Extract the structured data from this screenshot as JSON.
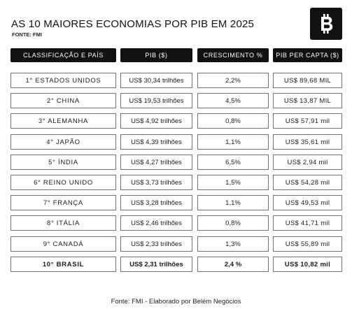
{
  "header": {
    "title": "AS 10 MAIORES ECONOMIAS POR PIB EM 2025",
    "source": "FONTE: FMI",
    "logo_icon": "bitcoin-icon"
  },
  "table": {
    "columns": [
      "CLASSIFICAÇÃO E PAÍS",
      "PIB ($)",
      "CRESCIMENTO %",
      "PIB PER CAPTA ($)"
    ],
    "rows": [
      {
        "rank": "1° ESTADOS UNIDOS",
        "gdp": "US$ 30,34 trilhões",
        "growth": "2,2%",
        "per_capita": "US$ 89,68 MIL"
      },
      {
        "rank": "2° CHINA",
        "gdp": "US$ 19,53 trilhões",
        "growth": "4,5%",
        "per_capita": "US$ 13,87 MIL"
      },
      {
        "rank": "3° ALEMANHA",
        "gdp": "US$ 4,92 trilhões",
        "growth": "0,8%",
        "per_capita": "US$ 57,91 mil"
      },
      {
        "rank": "4° JAPÃO",
        "gdp": "US$ 4,39 trilhões",
        "growth": "1,1%",
        "per_capita": "US$ 35,61 mil"
      },
      {
        "rank": "5° ÍNDIA",
        "gdp": "US$ 4,27 trilhões",
        "growth": "6,5%",
        "per_capita": "US$ 2,94 mil"
      },
      {
        "rank": "6° REINO UNIDO",
        "gdp": "US$ 3,73 trilhões",
        "growth": "1,5%",
        "per_capita": "US$ 54,28 mil"
      },
      {
        "rank": "7° FRANÇA",
        "gdp": "US$ 3,28 trilhões",
        "growth": "1,1%",
        "per_capita": "US$ 49,53 mil"
      },
      {
        "rank": "8° ITÁLIA",
        "gdp": "US$ 2,46 trilhões",
        "growth": "0,8%",
        "per_capita": "US$ 41,71 mil"
      },
      {
        "rank": "9° CANADÁ",
        "gdp": "US$ 2,33 trilhões",
        "growth": "1,3%",
        "per_capita": "US$ 55,89 mil"
      },
      {
        "rank": "10° BRASIL",
        "gdp": "US$ 2,31 trilhões",
        "growth": "2,4 %",
        "per_capita": "US$ 10,82 mil"
      }
    ]
  },
  "footer": {
    "text": "Fonte: FMI - Elaborado por Belém Negócios"
  }
}
